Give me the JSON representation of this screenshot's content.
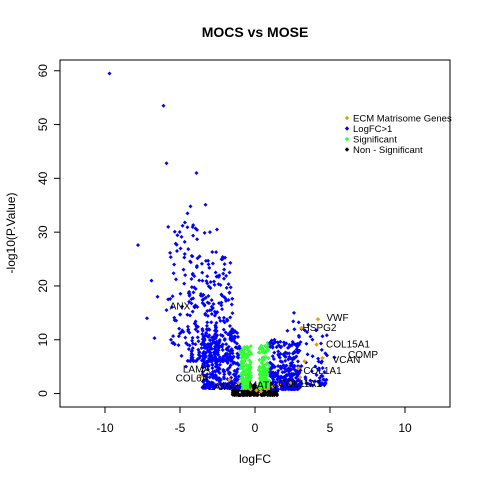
{
  "chart_data": {
    "type": "scatter",
    "title": "MOCS vs MOSE",
    "xlabel": "logFC",
    "ylabel": "-log10(P.Value)",
    "xlim": [
      -13,
      13
    ],
    "ylim": [
      -2.5,
      62
    ],
    "x_ticks": [
      -10,
      -5,
      0,
      5,
      10
    ],
    "y_ticks": [
      0,
      10,
      20,
      30,
      40,
      50,
      60
    ],
    "legend": {
      "position": "top-right",
      "entries": [
        {
          "label": "ECM Matrisome Genes",
          "color": "#e69f00",
          "marker": "diamond"
        },
        {
          "label": "LogFC>1",
          "color": "#0000ff",
          "marker": "diamond"
        },
        {
          "label": "Significant",
          "color": "#33ff33",
          "marker": "diamond"
        },
        {
          "label": "Non - Significant",
          "color": "#000000",
          "marker": "diamond"
        }
      ]
    },
    "series": [
      {
        "name": "LogFC>1",
        "color": "#0000ff",
        "points": [
          [
            -9.7,
            59.5
          ],
          [
            -6.1,
            53.5
          ],
          [
            -5.9,
            42.8
          ],
          [
            -3.9,
            41.0
          ],
          [
            -4.3,
            34.8
          ],
          [
            -3.3,
            35.1
          ],
          [
            -4.5,
            33.5
          ],
          [
            -7.8,
            27.6
          ],
          [
            -5.2,
            26.5
          ],
          [
            -6.9,
            21.0
          ],
          [
            -6.5,
            18.0
          ],
          [
            -5.9,
            15.5
          ],
          [
            -7.2,
            14.0
          ],
          [
            -6.7,
            10.3
          ],
          [
            -5.6,
            10.0
          ],
          [
            -5.1,
            9.0
          ],
          [
            -4.9,
            7.0
          ],
          [
            -4.6,
            5.0
          ],
          [
            -4.2,
            8.0
          ],
          [
            -3.9,
            12.5
          ],
          [
            -3.6,
            18.5
          ],
          [
            -3.1,
            24.0
          ],
          [
            -2.7,
            20.2
          ],
          [
            -2.4,
            16.8
          ],
          [
            -2.1,
            13.5
          ],
          [
            -1.8,
            11.0
          ],
          [
            -1.5,
            7.5
          ],
          [
            -1.2,
            4.0
          ],
          [
            2.6,
            15.0
          ],
          [
            3.1,
            12.0
          ],
          [
            3.7,
            10.6
          ],
          [
            4.4,
            9.3
          ],
          [
            4.8,
            7.1
          ],
          [
            5.3,
            6.7
          ],
          [
            3.4,
            5.8
          ],
          [
            2.8,
            4.2
          ],
          [
            2.2,
            8.5
          ],
          [
            1.7,
            6.0
          ],
          [
            1.3,
            3.2
          ]
        ],
        "clusters": [
          {
            "x": [
              -3.5,
              -1.0
            ],
            "y": [
              1.0,
              12.0
            ],
            "n": 320
          },
          {
            "x": [
              -4.5,
              -1.5
            ],
            "y": [
              6.0,
              26.0
            ],
            "n": 230
          },
          {
            "x": [
              -5.8,
              -2.5
            ],
            "y": [
              9.0,
              32.0
            ],
            "n": 110
          },
          {
            "x": [
              1.0,
              3.0
            ],
            "y": [
              0.8,
              10.0
            ],
            "n": 260
          },
          {
            "x": [
              2.0,
              4.8
            ],
            "y": [
              1.5,
              14.0
            ],
            "n": 90
          }
        ]
      },
      {
        "name": "Significant",
        "color": "#33ff33",
        "clusters": [
          {
            "x": [
              -1.0,
              -0.25
            ],
            "y": [
              1.0,
              9.0
            ],
            "n": 170
          },
          {
            "x": [
              0.25,
              1.0
            ],
            "y": [
              1.0,
              9.5
            ],
            "n": 170
          }
        ]
      },
      {
        "name": "Non - Significant",
        "color": "#000000",
        "clusters": [
          {
            "x": [
              -1.5,
              1.5
            ],
            "y": [
              -0.3,
              1.6
            ],
            "n": 260
          }
        ]
      },
      {
        "name": "ECM Matrisome Genes",
        "color": "#e69f00",
        "points": [
          [
            4.2,
            13.8
          ],
          [
            3.1,
            12.2
          ],
          [
            4.1,
            9.1
          ],
          [
            4.5,
            6.6
          ],
          [
            3.3,
            6.0
          ],
          [
            2.9,
            4.7
          ],
          [
            3.0,
            3.0
          ],
          [
            2.4,
            2.0
          ],
          [
            1.6,
            1.7
          ],
          [
            1.2,
            1.3
          ],
          [
            0.8,
            0.9
          ],
          [
            0.4,
            0.4
          ],
          [
            0.1,
            0.6
          ],
          [
            -0.3,
            0.8
          ],
          [
            -1.1,
            2.0
          ],
          [
            -1.7,
            2.6
          ],
          [
            -3.6,
            3.2
          ],
          [
            -2.4,
            1.2
          ]
        ]
      }
    ],
    "annotations": [
      {
        "label": "VWF",
        "x": 5.5,
        "y": 14.0
      },
      {
        "label": "HSPG2",
        "x": 4.3,
        "y": 12.2
      },
      {
        "label": "COL15A1",
        "x": 6.2,
        "y": 9.1
      },
      {
        "label": "COMP",
        "x": 7.2,
        "y": 7.2
      },
      {
        "label": "VCAN",
        "x": 6.1,
        "y": 6.2
      },
      {
        "label": "COL1A1",
        "x": 4.5,
        "y": 4.2
      },
      {
        "label": "COL11A1",
        "x": 3.0,
        "y": 1.8
      },
      {
        "label": "ANX",
        "x": -5.0,
        "y": 16.2
      },
      {
        "label": "LAMA",
        "x": -3.9,
        "y": 4.5
      },
      {
        "label": "COL6A",
        "x": -4.2,
        "y": 2.8
      },
      {
        "label": "LAMA",
        "x": -2.2,
        "y": 1.2
      },
      {
        "label": "MATN",
        "x": 0.5,
        "y": 1.5
      }
    ]
  }
}
